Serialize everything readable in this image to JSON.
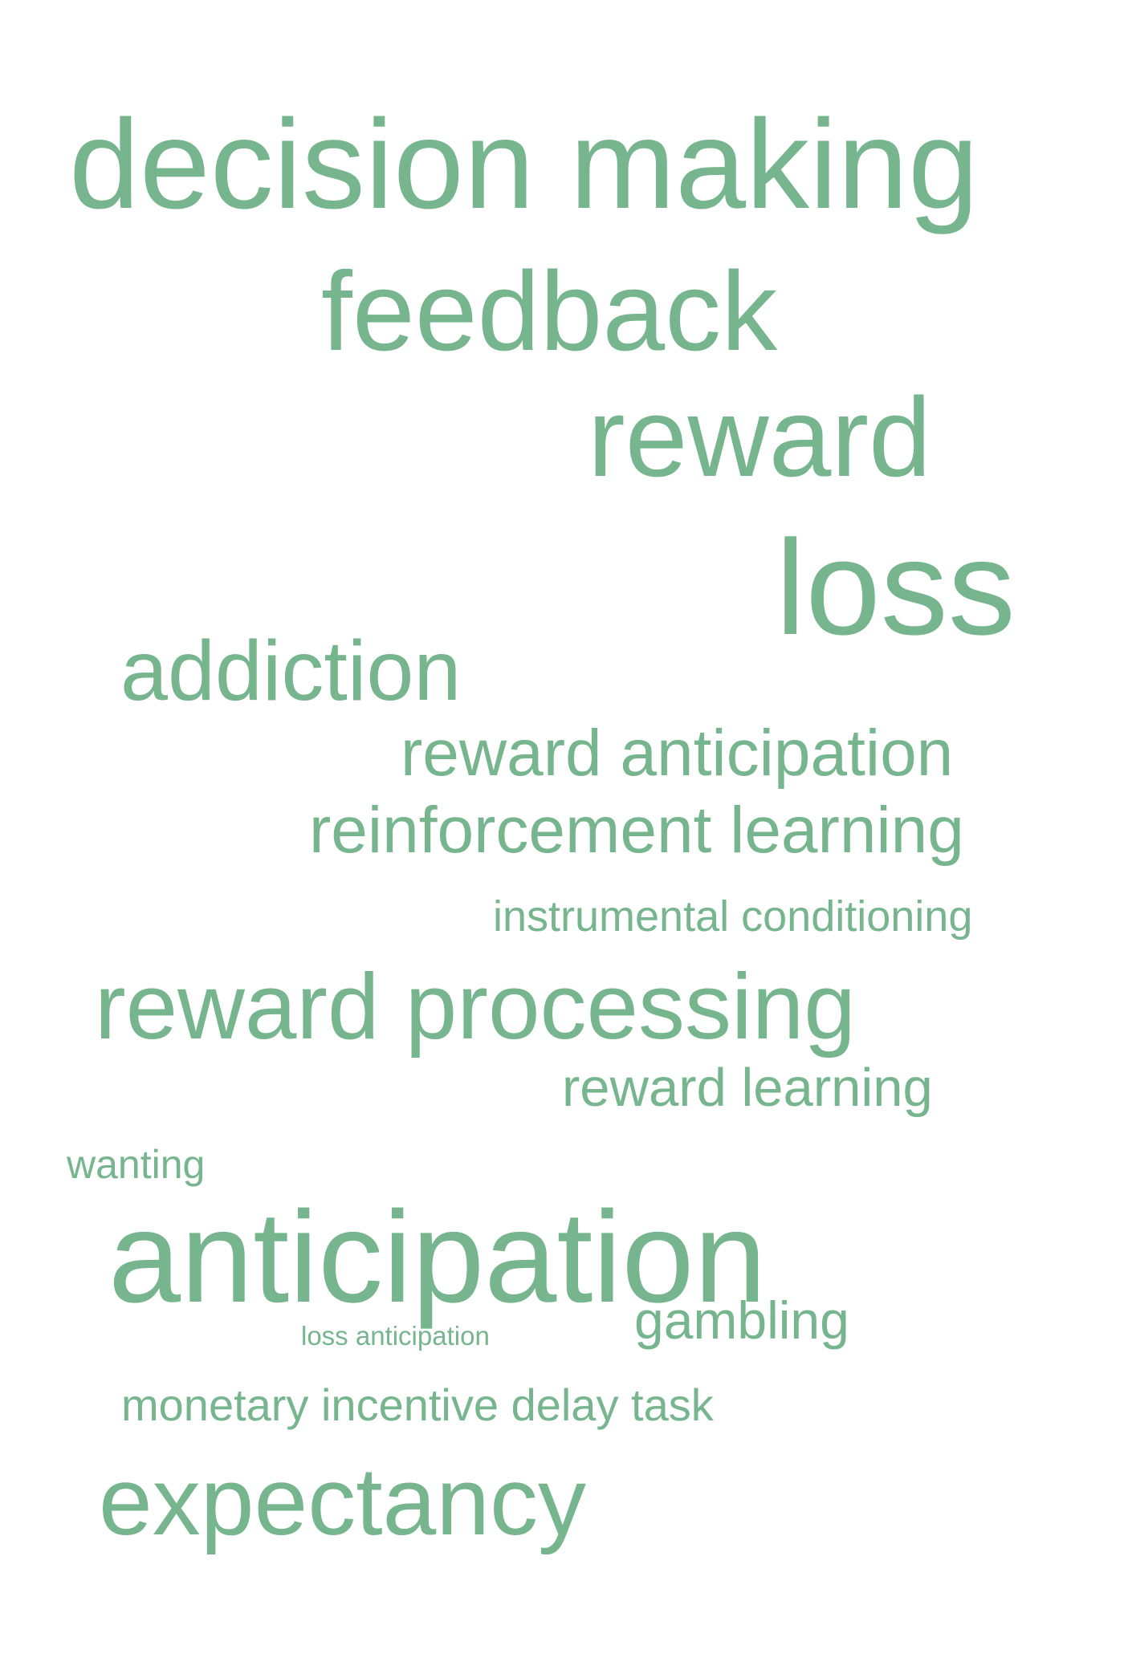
{
  "word_cloud": {
    "color": "#76b58d",
    "background": "#ffffff",
    "words": [
      {
        "id": "decision-making",
        "text": "decision making"
      },
      {
        "id": "feedback",
        "text": "feedback"
      },
      {
        "id": "reward",
        "text": "reward"
      },
      {
        "id": "loss",
        "text": "loss"
      },
      {
        "id": "addiction",
        "text": "addiction"
      },
      {
        "id": "reward-anticipation",
        "text": "reward anticipation"
      },
      {
        "id": "reinforcement-learning",
        "text": "reinforcement learning"
      },
      {
        "id": "instrumental-conditioning",
        "text": "instrumental conditioning"
      },
      {
        "id": "reward-processing",
        "text": "reward processing"
      },
      {
        "id": "reward-learning",
        "text": "reward learning"
      },
      {
        "id": "wanting",
        "text": "wanting"
      },
      {
        "id": "anticipation",
        "text": "anticipation"
      },
      {
        "id": "gambling",
        "text": "gambling"
      },
      {
        "id": "loss-anticipation",
        "text": "loss anticipation"
      },
      {
        "id": "monetary-incentive-delay-task",
        "text": "monetary incentive delay task"
      },
      {
        "id": "expectancy",
        "text": "expectancy"
      }
    ]
  }
}
